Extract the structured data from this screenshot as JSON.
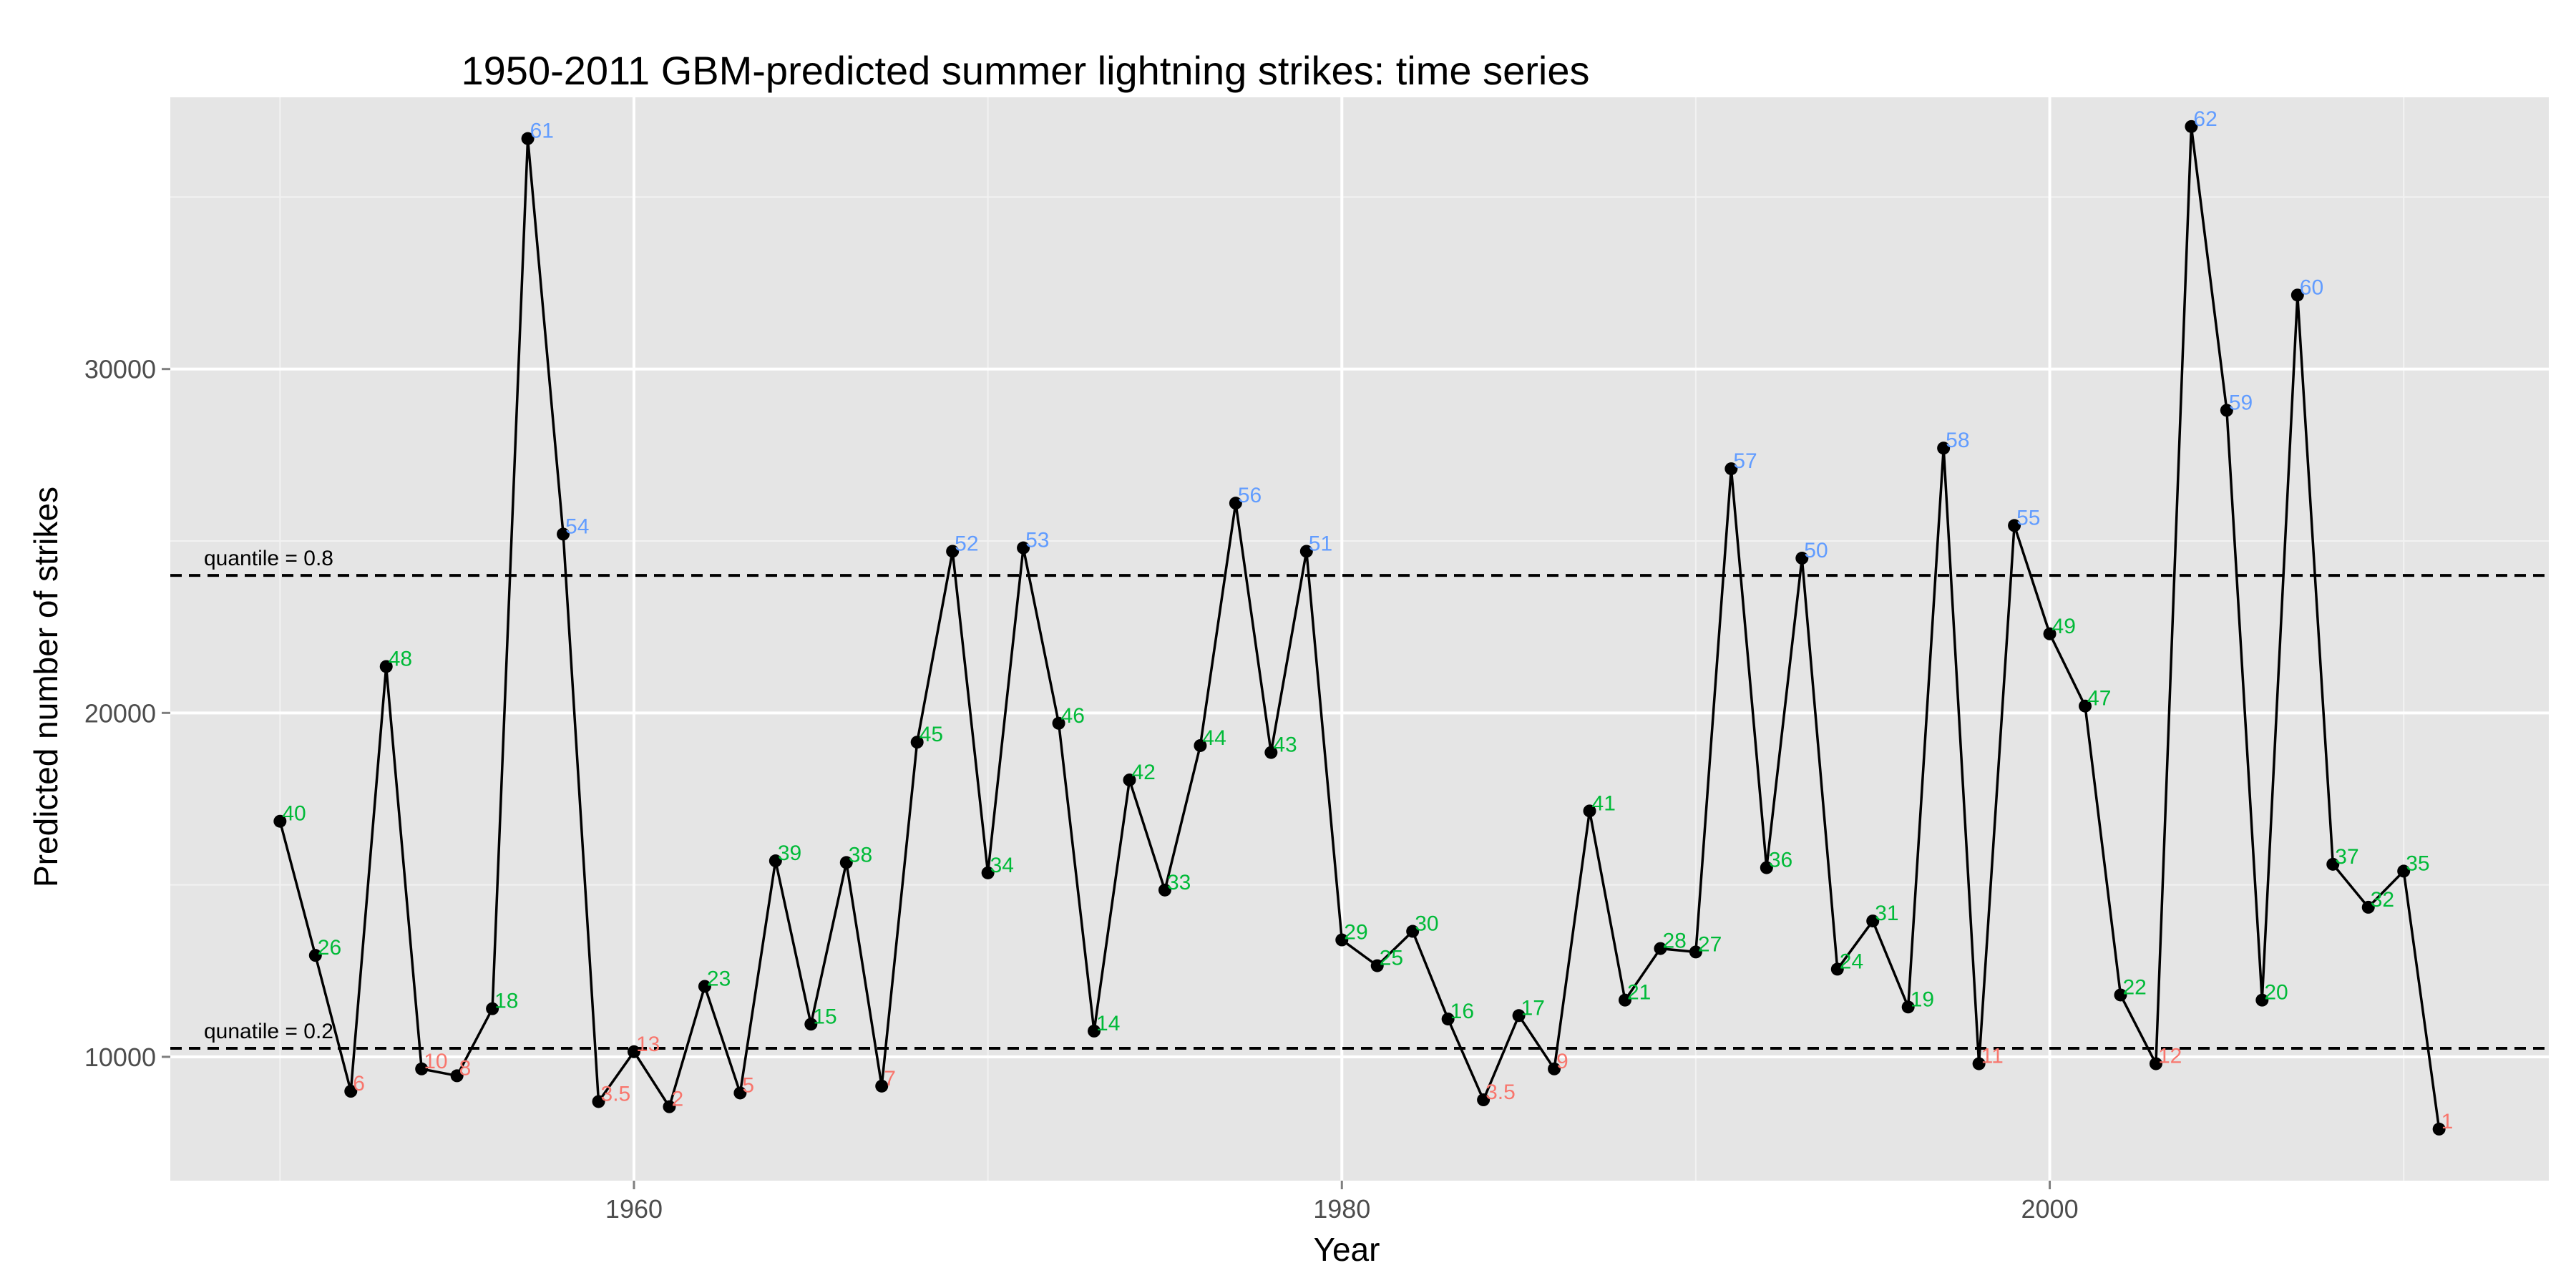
{
  "chart_data": {
    "type": "line",
    "title": "1950-2011 GBM-predicted summer lightning strikes: time series",
    "xlabel": "Year",
    "ylabel": "Predicted number of strikes",
    "xlim": [
      1946.9,
      2014.1
    ],
    "ylim": [
      6400,
      37900
    ],
    "x_ticks": [
      1960,
      1980,
      2000
    ],
    "y_ticks": [
      10000,
      20000,
      30000
    ],
    "grid": true,
    "panel_color": "#e5e5e5",
    "line_color": "#000000",
    "rank_colors": {
      "low": "#f8766d",
      "mid": "#00ba38",
      "high": "#619cff"
    },
    "ref_lines": [
      {
        "label": "quantile = 0.8",
        "value": 24000
      },
      {
        "label": "qunatile = 0.2",
        "value": 10250
      }
    ],
    "points": [
      {
        "x": 1950,
        "y": 16850,
        "label": "40",
        "class": "mid"
      },
      {
        "x": 1951,
        "y": 12950,
        "label": "26",
        "class": "mid"
      },
      {
        "x": 1952,
        "y": 9000,
        "label": "6",
        "class": "low"
      },
      {
        "x": 1953,
        "y": 21350,
        "label": "48",
        "class": "mid"
      },
      {
        "x": 1954,
        "y": 9650,
        "label": "10",
        "class": "low"
      },
      {
        "x": 1955,
        "y": 9450,
        "label": "8",
        "class": "low"
      },
      {
        "x": 1956,
        "y": 11400,
        "label": "18",
        "class": "mid"
      },
      {
        "x": 1957,
        "y": 36700,
        "label": "61",
        "class": "high"
      },
      {
        "x": 1958,
        "y": 25200,
        "label": "54",
        "class": "high"
      },
      {
        "x": 1959,
        "y": 8700,
        "label": "3.5",
        "class": "low"
      },
      {
        "x": 1960,
        "y": 10150,
        "label": "13",
        "class": "low"
      },
      {
        "x": 1961,
        "y": 8550,
        "label": "2",
        "class": "low"
      },
      {
        "x": 1962,
        "y": 12050,
        "label": "23",
        "class": "mid"
      },
      {
        "x": 1963,
        "y": 8950,
        "label": "5",
        "class": "low"
      },
      {
        "x": 1964,
        "y": 15700,
        "label": "39",
        "class": "mid"
      },
      {
        "x": 1965,
        "y": 10950,
        "label": "15",
        "class": "mid"
      },
      {
        "x": 1966,
        "y": 15650,
        "label": "38",
        "class": "mid"
      },
      {
        "x": 1967,
        "y": 9150,
        "label": "7",
        "class": "low"
      },
      {
        "x": 1968,
        "y": 19150,
        "label": "45",
        "class": "mid"
      },
      {
        "x": 1969,
        "y": 24700,
        "label": "52",
        "class": "high"
      },
      {
        "x": 1970,
        "y": 15350,
        "label": "34",
        "class": "mid"
      },
      {
        "x": 1971,
        "y": 24800,
        "label": "53",
        "class": "high"
      },
      {
        "x": 1972,
        "y": 19700,
        "label": "46",
        "class": "mid"
      },
      {
        "x": 1973,
        "y": 10750,
        "label": "14",
        "class": "mid"
      },
      {
        "x": 1974,
        "y": 18050,
        "label": "42",
        "class": "mid"
      },
      {
        "x": 1975,
        "y": 14850,
        "label": "33",
        "class": "mid"
      },
      {
        "x": 1976,
        "y": 19050,
        "label": "44",
        "class": "mid"
      },
      {
        "x": 1977,
        "y": 26100,
        "label": "56",
        "class": "high"
      },
      {
        "x": 1978,
        "y": 18850,
        "label": "43",
        "class": "mid"
      },
      {
        "x": 1979,
        "y": 24700,
        "label": "51",
        "class": "high"
      },
      {
        "x": 1980,
        "y": 13400,
        "label": "29",
        "class": "mid"
      },
      {
        "x": 1981,
        "y": 12650,
        "label": "25",
        "class": "mid"
      },
      {
        "x": 1982,
        "y": 13650,
        "label": "30",
        "class": "mid"
      },
      {
        "x": 1983,
        "y": 11100,
        "label": "16",
        "class": "mid"
      },
      {
        "x": 1984,
        "y": 8750,
        "label": "3.5",
        "class": "low"
      },
      {
        "x": 1985,
        "y": 11200,
        "label": "17",
        "class": "mid"
      },
      {
        "x": 1986,
        "y": 9650,
        "label": "9",
        "class": "low"
      },
      {
        "x": 1987,
        "y": 17150,
        "label": "41",
        "class": "mid"
      },
      {
        "x": 1988,
        "y": 11650,
        "label": "21",
        "class": "mid"
      },
      {
        "x": 1989,
        "y": 13150,
        "label": "28",
        "class": "mid"
      },
      {
        "x": 1990,
        "y": 13050,
        "label": "27",
        "class": "mid"
      },
      {
        "x": 1991,
        "y": 27100,
        "label": "57",
        "class": "high"
      },
      {
        "x": 1992,
        "y": 15500,
        "label": "36",
        "class": "mid"
      },
      {
        "x": 1993,
        "y": 24500,
        "label": "50",
        "class": "high"
      },
      {
        "x": 1994,
        "y": 12550,
        "label": "24",
        "class": "mid"
      },
      {
        "x": 1995,
        "y": 13950,
        "label": "31",
        "class": "mid"
      },
      {
        "x": 1996,
        "y": 11450,
        "label": "19",
        "class": "mid"
      },
      {
        "x": 1997,
        "y": 27700,
        "label": "58",
        "class": "high"
      },
      {
        "x": 1998,
        "y": 9800,
        "label": "11",
        "class": "low"
      },
      {
        "x": 1999,
        "y": 25450,
        "label": "55",
        "class": "high"
      },
      {
        "x": 2000,
        "y": 22300,
        "label": "49",
        "class": "mid"
      },
      {
        "x": 2001,
        "y": 20200,
        "label": "47",
        "class": "mid"
      },
      {
        "x": 2002,
        "y": 11800,
        "label": "22",
        "class": "mid"
      },
      {
        "x": 2003,
        "y": 9800,
        "label": "12",
        "class": "low"
      },
      {
        "x": 2004,
        "y": 37050,
        "label": "62",
        "class": "high"
      },
      {
        "x": 2005,
        "y": 28800,
        "label": "59",
        "class": "high"
      },
      {
        "x": 2006,
        "y": 11650,
        "label": "20",
        "class": "mid"
      },
      {
        "x": 2007,
        "y": 32150,
        "label": "60",
        "class": "high"
      },
      {
        "x": 2008,
        "y": 15600,
        "label": "37",
        "class": "mid"
      },
      {
        "x": 2009,
        "y": 14350,
        "label": "32",
        "class": "mid"
      },
      {
        "x": 2010,
        "y": 15400,
        "label": "35",
        "class": "mid"
      },
      {
        "x": 2011,
        "y": 7900,
        "label": "1",
        "class": "low"
      }
    ]
  }
}
